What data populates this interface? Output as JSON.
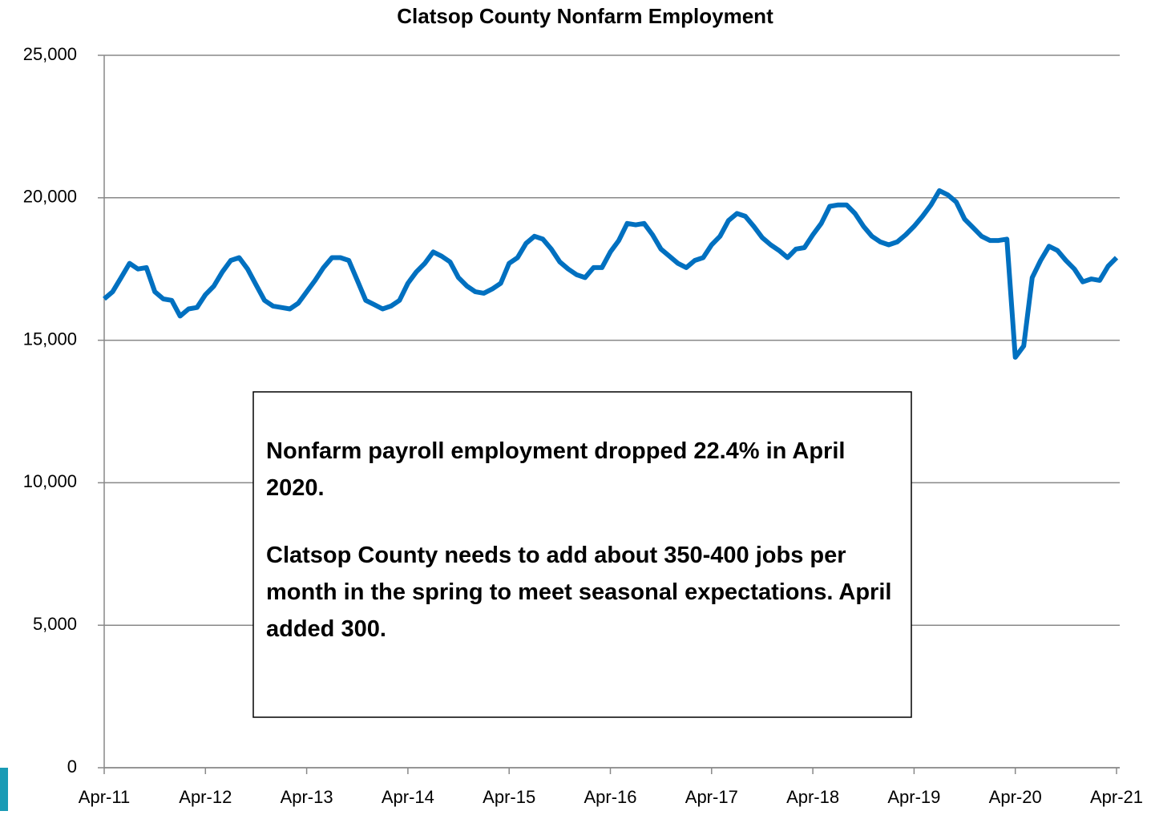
{
  "chart_data": {
    "type": "line",
    "title": "Clatsop County Nonfarm Employment",
    "categories": [
      "Apr-11",
      null,
      null,
      null,
      null,
      null,
      null,
      null,
      null,
      null,
      null,
      null,
      "Apr-12",
      null,
      null,
      null,
      null,
      null,
      null,
      null,
      null,
      null,
      null,
      null,
      "Apr-13",
      null,
      null,
      null,
      null,
      null,
      null,
      null,
      null,
      null,
      null,
      null,
      "Apr-14",
      null,
      null,
      null,
      null,
      null,
      null,
      null,
      null,
      null,
      null,
      null,
      "Apr-15",
      null,
      null,
      null,
      null,
      null,
      null,
      null,
      null,
      null,
      null,
      null,
      "Apr-16",
      null,
      null,
      null,
      null,
      null,
      null,
      null,
      null,
      null,
      null,
      null,
      "Apr-17",
      null,
      null,
      null,
      null,
      null,
      null,
      null,
      null,
      null,
      null,
      null,
      "Apr-18",
      null,
      null,
      null,
      null,
      null,
      null,
      null,
      null,
      null,
      null,
      null,
      "Apr-19",
      null,
      null,
      null,
      null,
      null,
      null,
      null,
      null,
      null,
      null,
      null,
      "Apr-20",
      null,
      null,
      null,
      null,
      null,
      null,
      null,
      null,
      null,
      null,
      null,
      "Apr-21"
    ],
    "series": [
      {
        "color": "#0070c0",
        "values": [
          16450,
          16700,
          17200,
          17700,
          17500,
          17550,
          16700,
          16450,
          16400,
          15850,
          16100,
          16150,
          16600,
          16900,
          17400,
          17800,
          17900,
          17500,
          16950,
          16400,
          16200,
          16150,
          16100,
          16300,
          16700,
          17100,
          17550,
          17900,
          17900,
          17800,
          17100,
          16400,
          16250,
          16100,
          16200,
          16400,
          17000,
          17400,
          17700,
          18100,
          17950,
          17750,
          17200,
          16900,
          16700,
          16650,
          16800,
          17000,
          17700,
          17900,
          18400,
          18650,
          18550,
          18200,
          17750,
          17500,
          17300,
          17200,
          17550,
          17550,
          18100,
          18500,
          19100,
          19050,
          19100,
          18700,
          18200,
          17950,
          17700,
          17550,
          17800,
          17900,
          18350,
          18650,
          19200,
          19450,
          19350,
          19000,
          18600,
          18350,
          18150,
          17900,
          18200,
          18250,
          18700,
          19100,
          19700,
          19750,
          19750,
          19450,
          19000,
          18650,
          18450,
          18350,
          18450,
          18700,
          19000,
          19350,
          19750,
          20250,
          20100,
          19850,
          19250,
          18950,
          18650,
          18500,
          18500,
          18550,
          14400,
          14800,
          17200,
          17800,
          18300,
          18150,
          17800,
          17500,
          17050,
          17150,
          17100,
          17600,
          17900
        ]
      }
    ],
    "ylim": [
      0,
      25000
    ],
    "yticks": [
      0,
      {
        "value": 5000,
        "label": "5,000"
      },
      {
        "value": 10000,
        "label": "10,000"
      },
      {
        "value": 15000,
        "label": "15,000"
      },
      {
        "value": 20000,
        "label": "20,000"
      },
      {
        "value": 25000,
        "label": "25,000"
      }
    ],
    "grid": true,
    "annotations": [
      "Nonfarm payroll employment dropped 22.4% in April 2020.",
      "Clatsop County needs to add about 350-400 jobs per month in the spring to meet seasonal expectations. April added 300."
    ]
  }
}
